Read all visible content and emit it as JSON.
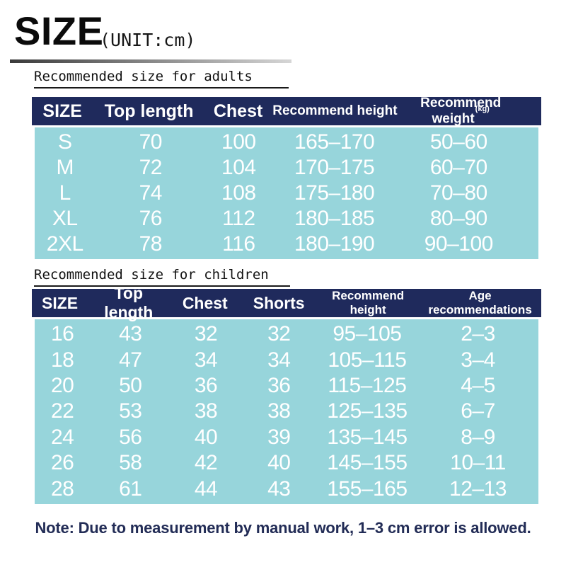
{
  "page": {
    "title": "SIZE",
    "unit_label": "(UNIT:cm)",
    "note": "Note: Due to measurement by manual work, 1–3 cm error is allowed."
  },
  "adults_table": {
    "section_title": "Recommended size for adults",
    "headers": [
      "SIZE",
      "Top length",
      "Chest",
      "Recommend height",
      "Recommend weight"
    ],
    "weight_unit_superscript": "(kg)",
    "rows": [
      [
        "S",
        "70",
        "100",
        "165–170",
        "50–60"
      ],
      [
        "M",
        "72",
        "104",
        "170–175",
        "60–70"
      ],
      [
        "L",
        "74",
        "108",
        "175–180",
        "70–80"
      ],
      [
        "XL",
        "76",
        "112",
        "180–185",
        "80–90"
      ],
      [
        "2XL",
        "78",
        "116",
        "180–190",
        "90–100"
      ]
    ]
  },
  "children_table": {
    "section_title": "Recommended size for children",
    "headers": [
      "SIZE",
      "Top length",
      "Chest",
      "Shorts",
      "Recommend height",
      "Age recommendations"
    ],
    "rows": [
      [
        "16",
        "43",
        "32",
        "32",
        "95–105",
        "2–3"
      ],
      [
        "18",
        "47",
        "34",
        "34",
        "105–115",
        "3–4"
      ],
      [
        "20",
        "50",
        "36",
        "36",
        "115–125",
        "4–5"
      ],
      [
        "22",
        "53",
        "38",
        "38",
        "125–135",
        "6–7"
      ],
      [
        "24",
        "56",
        "40",
        "39",
        "135–145",
        "8–9"
      ],
      [
        "26",
        "58",
        "42",
        "40",
        "145–155",
        "10–11"
      ],
      [
        "28",
        "61",
        "44",
        "43",
        "155–165",
        "12–13"
      ]
    ]
  },
  "colors": {
    "header_bg": "#1f2a5c",
    "row_bg": "#97d5db",
    "note_text": "#222c56"
  }
}
